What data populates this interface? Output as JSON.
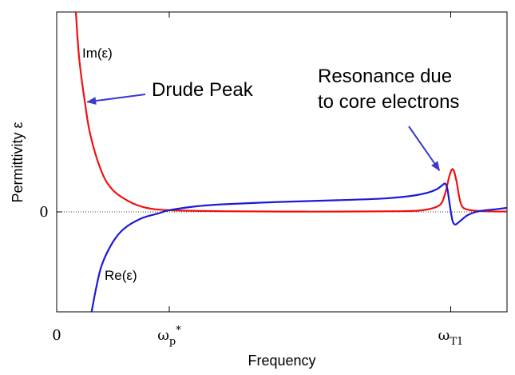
{
  "chart_data": {
    "type": "line",
    "title": "",
    "xlabel": "Frequency",
    "ylabel": "Permittivity ε",
    "xlim": [
      0,
      8
    ],
    "ylim": [
      -3,
      6
    ],
    "grid": false,
    "x_ticks": [
      {
        "x": 0,
        "base": "0",
        "sub": "",
        "sup": ""
      },
      {
        "x": 2,
        "base": "ω",
        "sub": "p",
        "sup": "*"
      },
      {
        "x": 7,
        "base": "ω",
        "sub": "T1",
        "sup": ""
      }
    ],
    "y_ticks": [
      {
        "y": 0,
        "label": "0"
      }
    ],
    "zero_line": true,
    "series": [
      {
        "name": "Im(ε)",
        "color": "#ee1111",
        "points": [
          [
            0.34,
            6.0
          ],
          [
            0.4,
            4.6
          ],
          [
            0.5,
            3.3
          ],
          [
            0.6,
            2.3
          ],
          [
            0.8,
            1.2
          ],
          [
            1.0,
            0.65
          ],
          [
            1.3,
            0.3
          ],
          [
            1.6,
            0.12
          ],
          [
            2.0,
            0.05
          ],
          [
            3.0,
            0.02
          ],
          [
            4.0,
            0.01
          ],
          [
            5.0,
            0.01
          ],
          [
            6.0,
            0.02
          ],
          [
            6.5,
            0.05
          ],
          [
            6.8,
            0.2
          ],
          [
            6.9,
            0.55
          ],
          [
            6.98,
            1.1
          ],
          [
            7.04,
            1.28
          ],
          [
            7.1,
            0.95
          ],
          [
            7.18,
            0.25
          ],
          [
            7.3,
            0.07
          ],
          [
            7.6,
            0.02
          ],
          [
            8.0,
            0.01
          ]
        ]
      },
      {
        "name": "Re(ε)",
        "color": "#1a1ad8",
        "points": [
          [
            0.62,
            -3.0
          ],
          [
            0.7,
            -2.3
          ],
          [
            0.8,
            -1.6
          ],
          [
            1.0,
            -0.9
          ],
          [
            1.2,
            -0.5
          ],
          [
            1.5,
            -0.2
          ],
          [
            1.8,
            -0.05
          ],
          [
            2.0,
            0.05
          ],
          [
            2.5,
            0.17
          ],
          [
            3.0,
            0.23
          ],
          [
            4.0,
            0.3
          ],
          [
            5.0,
            0.35
          ],
          [
            5.8,
            0.4
          ],
          [
            6.3,
            0.48
          ],
          [
            6.6,
            0.58
          ],
          [
            6.75,
            0.68
          ],
          [
            6.85,
            0.8
          ],
          [
            6.9,
            0.85
          ],
          [
            6.94,
            0.7
          ],
          [
            6.98,
            0.25
          ],
          [
            7.03,
            -0.25
          ],
          [
            7.08,
            -0.38
          ],
          [
            7.15,
            -0.3
          ],
          [
            7.3,
            -0.1
          ],
          [
            7.5,
            0.02
          ],
          [
            7.8,
            0.08
          ],
          [
            8.0,
            0.12
          ]
        ]
      }
    ],
    "annotations": [
      {
        "lines": [
          "Drude Peak"
        ],
        "arrow_to": [
          0.5,
          3.3
        ]
      },
      {
        "lines": [
          "Resonance due",
          "to core electrons"
        ],
        "arrow_to": [
          6.8,
          1.1
        ]
      }
    ]
  }
}
